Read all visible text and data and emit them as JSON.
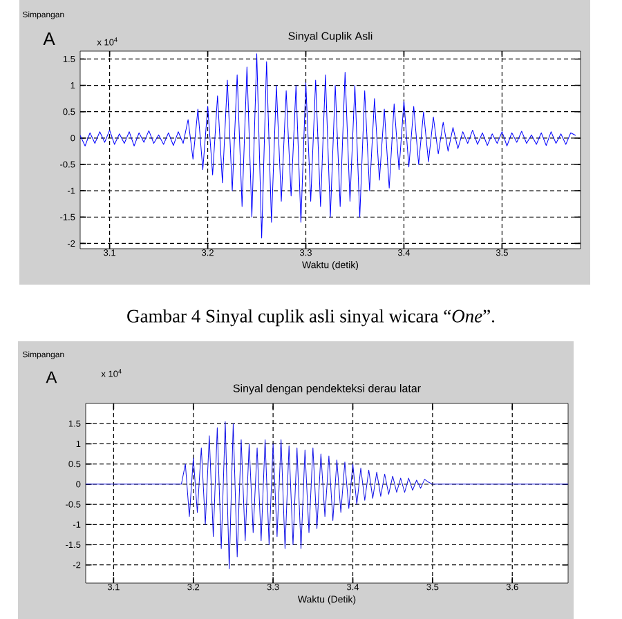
{
  "chart_data": [
    {
      "type": "line",
      "title": "Sinyal Cuplik Asli",
      "xlabel": "Waktu (detik)",
      "ylabel": "Simpangan",
      "annotations": [
        "A",
        "x 10$^{4}$",
        "Gambar 4 Sinyal cuplik asli sinyal wicara “*One*”."
      ],
      "xlim": [
        3.07,
        3.58
      ],
      "ylim": [
        -2.1,
        1.65
      ],
      "xticks": [
        3.1,
        3.2,
        3.3,
        3.4,
        3.5
      ],
      "yticks": [
        -2,
        -1.5,
        -1,
        -0.5,
        0,
        0.5,
        1,
        1.5
      ],
      "grid": true,
      "series": [
        {
          "color": "#0000ff",
          "x": [
            3.07,
            3.075,
            3.08,
            3.085,
            3.09,
            3.095,
            3.1,
            3.105,
            3.11,
            3.115,
            3.12,
            3.125,
            3.13,
            3.135,
            3.14,
            3.145,
            3.15,
            3.155,
            3.16,
            3.165,
            3.17,
            3.175,
            3.18,
            3.185,
            3.19,
            3.195,
            3.2,
            3.205,
            3.21,
            3.215,
            3.22,
            3.225,
            3.23,
            3.235,
            3.24,
            3.245,
            3.25,
            3.255,
            3.26,
            3.265,
            3.27,
            3.275,
            3.28,
            3.285,
            3.29,
            3.295,
            3.3,
            3.305,
            3.31,
            3.315,
            3.32,
            3.325,
            3.33,
            3.335,
            3.34,
            3.345,
            3.35,
            3.355,
            3.36,
            3.365,
            3.37,
            3.375,
            3.38,
            3.385,
            3.39,
            3.395,
            3.4,
            3.405,
            3.41,
            3.415,
            3.42,
            3.425,
            3.43,
            3.435,
            3.44,
            3.445,
            3.45,
            3.455,
            3.46,
            3.465,
            3.47,
            3.475,
            3.48,
            3.485,
            3.49,
            3.495,
            3.5,
            3.505,
            3.51,
            3.515,
            3.52,
            3.525,
            3.53,
            3.535,
            3.54,
            3.545,
            3.55,
            3.555,
            3.56,
            3.565,
            3.57,
            3.575
          ],
          "values": [
            0.05,
            -0.15,
            0.1,
            -0.1,
            0.12,
            -0.08,
            0.15,
            -0.12,
            0.08,
            -0.1,
            0.12,
            -0.15,
            0.1,
            -0.08,
            0.14,
            -0.1,
            0.06,
            -0.12,
            0.1,
            -0.14,
            0.12,
            -0.1,
            0.35,
            -0.4,
            0.55,
            -0.6,
            0.6,
            -0.7,
            0.8,
            -0.85,
            1.1,
            -1.0,
            1.2,
            -1.3,
            1.35,
            -1.5,
            1.6,
            -1.9,
            1.45,
            -1.6,
            1.0,
            -1.2,
            0.9,
            -1.1,
            1.0,
            -1.6,
            1.05,
            -1.2,
            1.1,
            -1.3,
            1.2,
            -1.5,
            1.0,
            -1.3,
            1.25,
            -1.2,
            1.0,
            -1.5,
            0.9,
            -1.0,
            0.75,
            -0.8,
            0.55,
            -0.95,
            0.65,
            -0.6,
            0.7,
            -0.55,
            0.6,
            -0.5,
            0.5,
            -0.45,
            0.4,
            -0.3,
            0.3,
            -0.25,
            0.2,
            -0.2,
            0.12,
            -0.1,
            0.15,
            -0.12,
            0.1,
            -0.14,
            0.08,
            -0.1,
            0.12,
            -0.15,
            0.1,
            -0.08,
            0.13,
            -0.1,
            0.06,
            -0.12,
            0.1,
            -0.14,
            0.12,
            -0.1,
            0.08,
            -0.12,
            0.1,
            0.05
          ]
        }
      ]
    },
    {
      "type": "line",
      "title": "Sinyal dengan pendekteksi derau latar",
      "xlabel": "Waktu (Detik)",
      "ylabel": "Simpangan",
      "annotations": [
        "A",
        "x 10$^{4}$"
      ],
      "xlim": [
        3.065,
        3.67
      ],
      "ylim": [
        -2.45,
        2.0
      ],
      "xticks": [
        3.1,
        3.2,
        3.3,
        3.4,
        3.5,
        3.6
      ],
      "yticks": [
        -2,
        -1.5,
        -1,
        -0.5,
        0,
        0.5,
        1,
        1.5
      ],
      "grid": true,
      "series": [
        {
          "color": "#1010e6",
          "x": [
            3.065,
            3.185,
            3.19,
            3.195,
            3.2,
            3.205,
            3.21,
            3.215,
            3.22,
            3.225,
            3.23,
            3.235,
            3.24,
            3.245,
            3.25,
            3.255,
            3.26,
            3.265,
            3.27,
            3.275,
            3.28,
            3.285,
            3.29,
            3.295,
            3.3,
            3.305,
            3.31,
            3.315,
            3.32,
            3.325,
            3.33,
            3.335,
            3.34,
            3.345,
            3.35,
            3.355,
            3.36,
            3.365,
            3.37,
            3.375,
            3.38,
            3.385,
            3.39,
            3.395,
            3.4,
            3.405,
            3.41,
            3.415,
            3.42,
            3.425,
            3.43,
            3.435,
            3.44,
            3.445,
            3.45,
            3.455,
            3.46,
            3.465,
            3.47,
            3.475,
            3.48,
            3.485,
            3.49,
            3.495,
            3.5,
            3.67
          ],
          "values": [
            0,
            0,
            0.5,
            -0.8,
            0.65,
            -0.7,
            0.9,
            -1.0,
            1.2,
            -1.3,
            1.4,
            -1.6,
            1.55,
            -2.1,
            1.5,
            -1.8,
            1.1,
            -1.4,
            1.0,
            -1.2,
            0.9,
            -1.4,
            1.1,
            -1.5,
            1.0,
            -1.3,
            1.1,
            -1.6,
            0.95,
            -1.5,
            0.9,
            -1.6,
            0.85,
            -1.2,
            0.9,
            -1.1,
            0.75,
            -0.8,
            0.7,
            -0.9,
            0.6,
            -0.7,
            0.55,
            -0.6,
            0.5,
            -0.5,
            0.4,
            -0.4,
            0.35,
            -0.35,
            0.3,
            -0.3,
            0.25,
            -0.25,
            0.2,
            -0.2,
            0.15,
            -0.2,
            0.15,
            -0.15,
            0.1,
            -0.1,
            0.12,
            0.05,
            0,
            0
          ]
        }
      ]
    }
  ]
}
